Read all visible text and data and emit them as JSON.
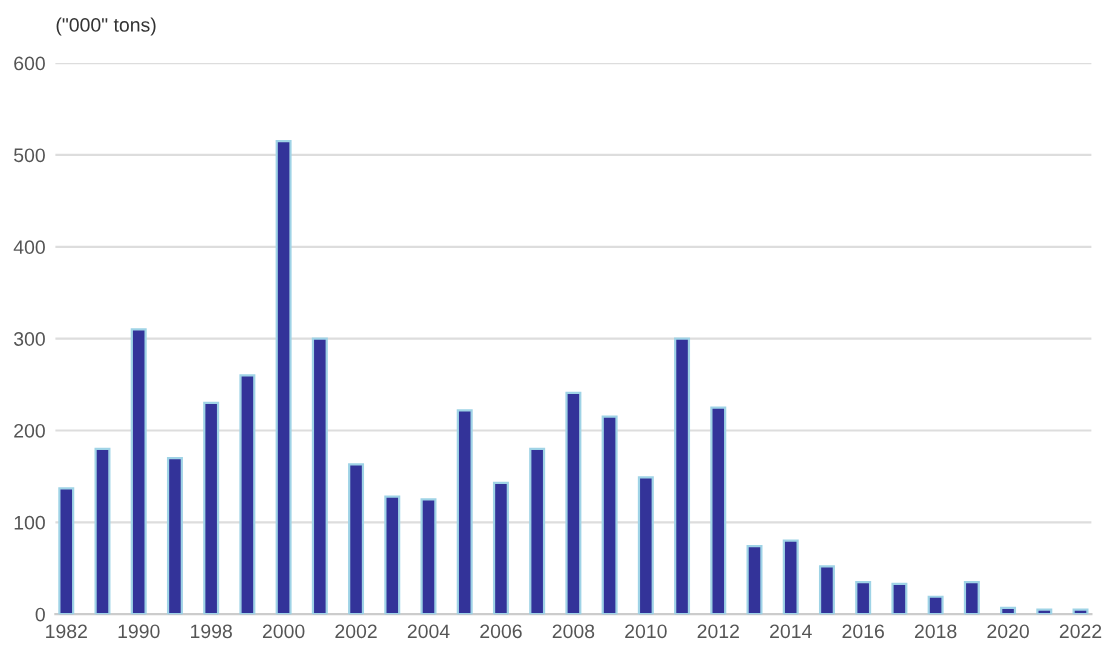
{
  "chart_data": {
    "type": "bar",
    "ylabel": "(\"000\" tons)",
    "categories": [
      "1982",
      null,
      "1990",
      null,
      "1998",
      null,
      "2000",
      null,
      "2002",
      null,
      "2004",
      null,
      "2006",
      null,
      "2008",
      null,
      "2010",
      null,
      "2012",
      null,
      "2014",
      null,
      "2016",
      null,
      "2018",
      null,
      "2020",
      null,
      "2022"
    ],
    "values": [
      137,
      180,
      310,
      170,
      230,
      260,
      515,
      300,
      163,
      128,
      125,
      222,
      143,
      180,
      241,
      215,
      149,
      300,
      225,
      74,
      80,
      52,
      35,
      33,
      19,
      35,
      7,
      5,
      5
    ],
    "color": "#333399",
    "ylim": [
      0,
      600
    ],
    "yticks": [
      0,
      100,
      200,
      300,
      400,
      500,
      600
    ],
    "grid": "y"
  }
}
